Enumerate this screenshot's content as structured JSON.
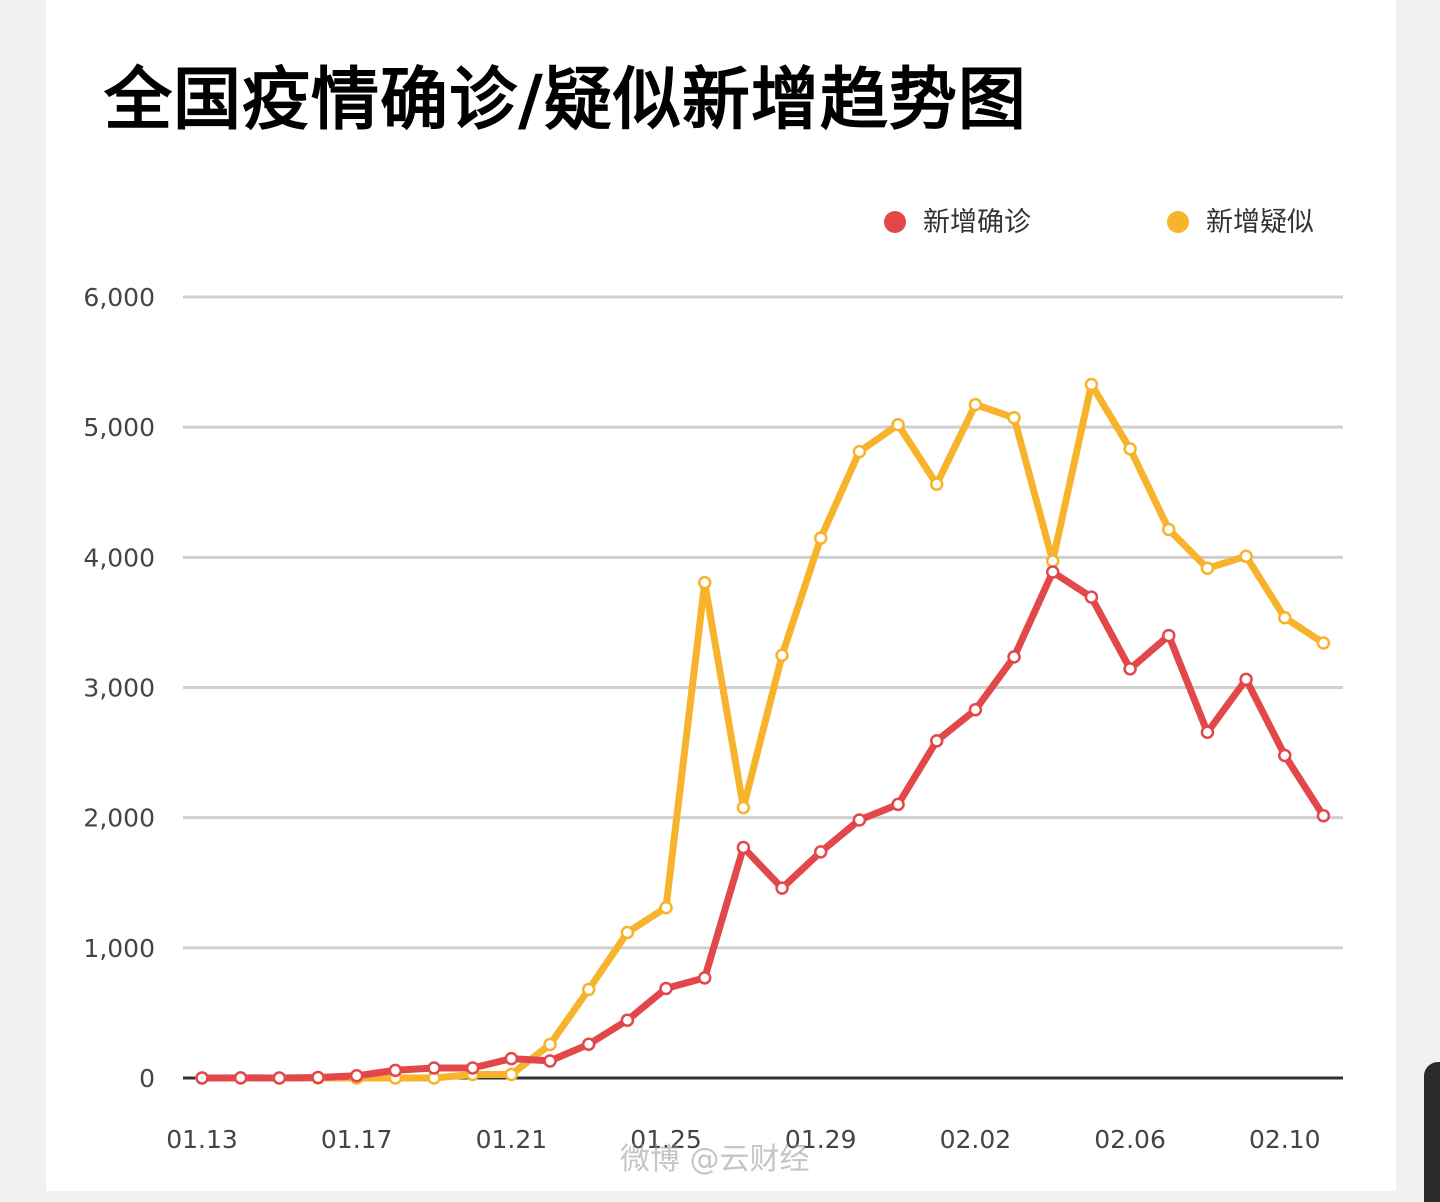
{
  "chart_data": {
    "type": "line",
    "title": "全国疫情确诊/疑似新增趋势图",
    "xlabel": "",
    "ylabel": "",
    "ylim": [
      0,
      6000
    ],
    "grid": true,
    "legend_position": "top-right",
    "yticks": [
      "0",
      "1,000",
      "2,000",
      "3,000",
      "4,000",
      "5,000",
      "6,000"
    ],
    "ytick_values": [
      0,
      1000,
      2000,
      3000,
      4000,
      5000,
      6000
    ],
    "x": [
      "01.13",
      "01.14",
      "01.15",
      "01.16",
      "01.17",
      "01.18",
      "01.19",
      "01.20",
      "01.21",
      "01.22",
      "01.23",
      "01.24",
      "01.25",
      "01.26",
      "01.27",
      "01.28",
      "01.29",
      "01.30",
      "01.31",
      "02.01",
      "02.02",
      "02.03",
      "02.04",
      "02.05",
      "02.06",
      "02.07",
      "02.08",
      "02.09",
      "02.10",
      "02.11"
    ],
    "xticks": [
      "01.13",
      "01.17",
      "01.21",
      "01.25",
      "01.29",
      "02.02",
      "02.06",
      "02.10"
    ],
    "series": [
      {
        "name": "新增确诊",
        "color": "#e2474a",
        "values": [
          0,
          1,
          0,
          4,
          17,
          59,
          77,
          77,
          149,
          131,
          259,
          444,
          688,
          769,
          1771,
          1459,
          1737,
          1982,
          2102,
          2590,
          2829,
          3235,
          3887,
          3694,
          3143,
          3399,
          2656,
          3062,
          2478,
          2015
        ]
      },
      {
        "name": "新增疑似",
        "color": "#f7b32b",
        "values": [
          0,
          0,
          0,
          0,
          0,
          0,
          0,
          27,
          27,
          257,
          680,
          1118,
          1309,
          3806,
          2077,
          3248,
          4148,
          4812,
          5019,
          4562,
          5173,
          5072,
          3971,
          5328,
          4833,
          4214,
          3916,
          4008,
          3536,
          3342
        ]
      }
    ]
  },
  "watermark": "微博 @云财经"
}
